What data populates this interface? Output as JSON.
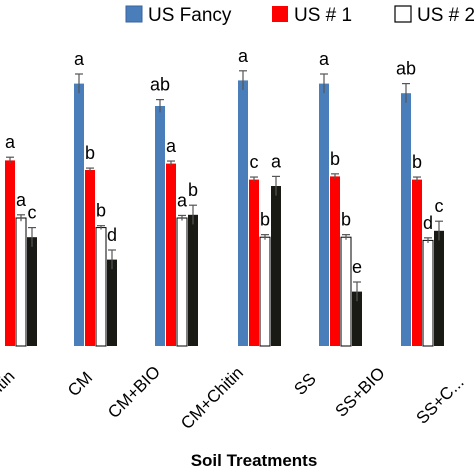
{
  "chart_data": {
    "type": "bar",
    "xlabel": "Soil Treatments",
    "ylabel": "",
    "ylim": [
      0,
      100
    ],
    "grid": false,
    "legend_position": "top",
    "categories": [
      "...itin",
      "CM",
      "CM+BIO",
      "CM+Chitin",
      "SS",
      "SS+BIO",
      "SS+C..."
    ],
    "series": [
      {
        "name": "US Fancy",
        "color": "#4a7ebb",
        "values": [
          null,
          82,
          75,
          83,
          82,
          79,
          null
        ],
        "errors": [
          null,
          3,
          2,
          3,
          3,
          3,
          null
        ],
        "letters": [
          null,
          "a",
          "ab",
          "a",
          "a",
          "ab",
          null
        ]
      },
      {
        "name": "US # 1",
        "color": "#ff0000",
        "values": [
          58,
          55,
          57,
          52,
          53,
          52,
          null
        ],
        "errors": [
          1,
          0.6,
          0.8,
          0.8,
          0.8,
          0.8,
          null
        ],
        "letters": [
          "a",
          "b",
          "a",
          "c",
          "b",
          "b",
          null
        ]
      },
      {
        "name": "US # 2",
        "color": "#ffffff",
        "values": [
          40,
          37,
          40,
          34,
          34,
          33,
          null
        ],
        "errors": [
          1,
          0.6,
          0.8,
          0.8,
          0.8,
          0.8,
          null
        ],
        "letters": [
          "a",
          "b",
          "a",
          "b",
          "b",
          "d",
          null
        ]
      },
      {
        "name": "",
        "color": "#1a1a14",
        "values": [
          34,
          27,
          41,
          50,
          17,
          36,
          null
        ],
        "errors": [
          3,
          3,
          3,
          3,
          3,
          3,
          null
        ],
        "letters": [
          "c",
          "d",
          "b",
          "a",
          "e",
          "c",
          null
        ]
      }
    ]
  }
}
